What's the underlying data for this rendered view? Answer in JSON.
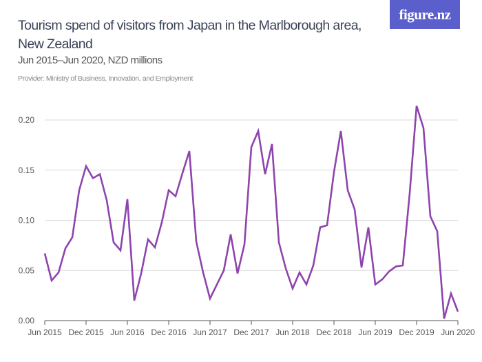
{
  "header": {
    "title": "Tourism spend of visitors from Japan in the Marlborough area, New Zealand",
    "subtitle": "Jun 2015–Jun 2020, NZD millions",
    "provider": "Provider: Ministry of Business, Innovation, and Employment",
    "logo": "figure.nz",
    "logo_color": "#5a5fcc"
  },
  "chart_data": {
    "type": "line",
    "title": "Tourism spend of visitors from Japan in the Marlborough area, New Zealand",
    "subtitle": "Jun 2015–Jun 2020, NZD millions",
    "xlabel": "",
    "ylabel": "",
    "ylim": [
      0,
      0.2
    ],
    "grid": true,
    "line_color": "#8e44ad",
    "y_ticks": [
      "0.00",
      "0.05",
      "0.10",
      "0.15",
      "0.20"
    ],
    "y_tick_values": [
      0,
      0.05,
      0.1,
      0.15,
      0.2
    ],
    "x_ticks": [
      "Jun 2015",
      "Dec 2015",
      "Jun 2016",
      "Dec 2016",
      "Jun 2017",
      "Dec 2017",
      "Jun 2018",
      "Dec 2018",
      "Jun 2019",
      "Dec 2019",
      "Jun 2020"
    ],
    "x": [
      "Jun 2015",
      "Jul 2015",
      "Aug 2015",
      "Sep 2015",
      "Oct 2015",
      "Nov 2015",
      "Dec 2015",
      "Jan 2016",
      "Feb 2016",
      "Mar 2016",
      "Apr 2016",
      "May 2016",
      "Jun 2016",
      "Jul 2016",
      "Aug 2016",
      "Sep 2016",
      "Oct 2016",
      "Nov 2016",
      "Dec 2016",
      "Jan 2017",
      "Feb 2017",
      "Mar 2017",
      "Apr 2017",
      "May 2017",
      "Jun 2017",
      "Jul 2017",
      "Aug 2017",
      "Sep 2017",
      "Oct 2017",
      "Nov 2017",
      "Dec 2017",
      "Jan 2018",
      "Feb 2018",
      "Mar 2018",
      "Apr 2018",
      "May 2018",
      "Jun 2018",
      "Jul 2018",
      "Aug 2018",
      "Sep 2018",
      "Oct 2018",
      "Nov 2018",
      "Dec 2018",
      "Jan 2019",
      "Feb 2019",
      "Mar 2019",
      "Apr 2019",
      "May 2019",
      "Jun 2019",
      "Jul 2019",
      "Aug 2019",
      "Sep 2019",
      "Oct 2019",
      "Nov 2019",
      "Dec 2019",
      "Jan 2020",
      "Feb 2020",
      "Mar 2020",
      "Apr 2020",
      "May 2020",
      "Jun 2020"
    ],
    "values": [
      0.067,
      0.04,
      0.048,
      0.072,
      0.083,
      0.13,
      0.154,
      0.142,
      0.146,
      0.12,
      0.078,
      0.07,
      0.121,
      0.02,
      0.047,
      0.081,
      0.073,
      0.098,
      0.13,
      0.124,
      0.147,
      0.169,
      0.079,
      0.048,
      0.022,
      0.036,
      0.05,
      0.086,
      0.047,
      0.076,
      0.173,
      0.189,
      0.146,
      0.176,
      0.078,
      0.052,
      0.032,
      0.048,
      0.036,
      0.055,
      0.093,
      0.095,
      0.148,
      0.189,
      0.13,
      0.111,
      0.053,
      0.093,
      0.036,
      0.041,
      0.049,
      0.054,
      0.055,
      0.127,
      0.214,
      0.192,
      0.104,
      0.089,
      0.002,
      0.027,
      0.009
    ]
  }
}
